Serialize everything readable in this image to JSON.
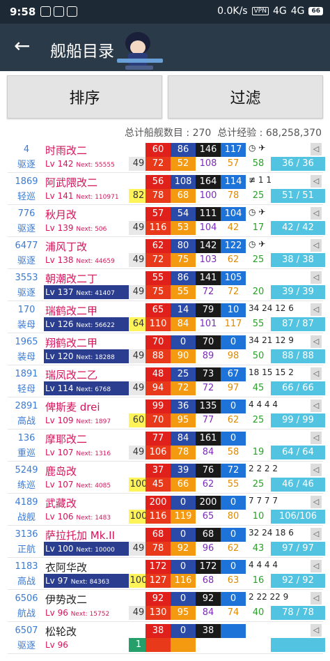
{
  "status": {
    "time": "9:58",
    "speed": "0.0K/s",
    "vpn": "VPN",
    "net1": "4G",
    "net2": "4G",
    "battery": "66"
  },
  "appbar": {
    "title": "舰船目录"
  },
  "buttons": {
    "sort": "排序",
    "filter": "过滤"
  },
  "summary": {
    "ship_count_label": "总计船舰数目 : ",
    "ship_count": "270",
    "exp_label": "总计经验 : ",
    "exp": "68,258,370"
  },
  "ships": [
    {
      "id": "4",
      "type": "驱逐",
      "name": "时雨改二",
      "lv": "Lv 142",
      "next": "Next: 55555",
      "cond": "49",
      "fp": "60",
      "tp": "86",
      "hp": "146",
      "aa": "117",
      "fp2": "72",
      "tp2": "52",
      "hp2": "108",
      "luck": "57",
      "luck2": "58",
      "hpbar": "36 / 36",
      "slots": "◷ ✈"
    },
    {
      "id": "1869",
      "type": "轻巡",
      "name": "阿武隈改二",
      "lv": "Lv 141",
      "next": "Next: 110971",
      "cond": "82",
      "fp": "56",
      "tp": "108",
      "hp": "164",
      "aa": "114",
      "fp2": "78",
      "tp2": "68",
      "hp2": "100",
      "luck": "78",
      "luck2": "25",
      "hpbar": "51 / 51",
      "slots": "≢ 1 1"
    },
    {
      "id": "776",
      "type": "驱逐",
      "name": "秋月改",
      "lv": "Lv 139",
      "next": "Next: 506",
      "cond": "49",
      "fp": "57",
      "tp": "54",
      "hp": "111",
      "aa": "104",
      "fp2": "116",
      "tp2": "53",
      "hp2": "104",
      "luck": "42",
      "luck2": "17",
      "hpbar": "42 / 42",
      "slots": "◷ ✈"
    },
    {
      "id": "6477",
      "type": "驱逐",
      "name": "浦风丁改",
      "lv": "Lv 138",
      "next": "Next: 44659",
      "cond": "49",
      "fp": "62",
      "tp": "80",
      "hp": "142",
      "aa": "122",
      "fp2": "72",
      "tp2": "75",
      "hp2": "103",
      "luck": "62",
      "luck2": "25",
      "hpbar": "38 / 38",
      "slots": "◷ ✈"
    },
    {
      "id": "3553",
      "type": "驱逐",
      "name": "朝潮改二丁",
      "lv": "Lv 137",
      "next": "Next: 41407",
      "cond": "49",
      "fp": "55",
      "tp": "86",
      "hp": "141",
      "aa": "105",
      "fp2": "75",
      "tp2": "55",
      "hp2": "72",
      "luck": "72",
      "luck2": "20",
      "hpbar": "39 / 39",
      "slots": ""
    },
    {
      "id": "170",
      "type": "装母",
      "name": "瑞鹤改二甲",
      "lv": "Lv 126",
      "next": "Next: 56622",
      "cond": "64",
      "fp": "65",
      "tp": "14",
      "hp": "79",
      "aa": "10",
      "fp2": "110",
      "tp2": "84",
      "hp2": "101",
      "luck": "117",
      "luck2": "55",
      "hpbar": "87 / 87",
      "slots": "34 24 12 6"
    },
    {
      "id": "1965",
      "type": "装母",
      "name": "翔鹤改二甲",
      "lv": "Lv 120",
      "next": "Next: 18288",
      "cond": "49",
      "fp": "70",
      "tp": "0",
      "hp": "70",
      "aa": "0",
      "fp2": "88",
      "tp2": "90",
      "hp2": "89",
      "luck": "98",
      "luck2": "50",
      "hpbar": "88 / 88",
      "slots": "34 21 12 9"
    },
    {
      "id": "1891",
      "type": "轻母",
      "name": "瑞凤改二乙",
      "lv": "Lv 114",
      "next": "Next: 6768",
      "cond": "49",
      "fp": "48",
      "tp": "25",
      "hp": "73",
      "aa": "67",
      "fp2": "94",
      "tp2": "72",
      "hp2": "72",
      "luck": "97",
      "luck2": "45",
      "hpbar": "66 / 66",
      "slots": "18 15 15 2"
    },
    {
      "id": "2891",
      "type": "高战",
      "name": "俾斯麦 drei",
      "lv": "Lv 109",
      "next": "Next: 1897",
      "cond": "60",
      "fp": "99",
      "tp": "36",
      "hp": "135",
      "aa": "0",
      "fp2": "70",
      "tp2": "95",
      "hp2": "77",
      "luck": "62",
      "luck2": "25",
      "hpbar": "99 / 99",
      "slots": "4 4 4 4"
    },
    {
      "id": "136",
      "type": "重巡",
      "name": "摩耶改二",
      "lv": "Lv 107",
      "next": "Next: 1316",
      "cond": "49",
      "fp": "77",
      "tp": "84",
      "hp": "161",
      "aa": "0",
      "fp2": "106",
      "tp2": "78",
      "hp2": "84",
      "luck": "58",
      "luck2": "19",
      "hpbar": "64 / 64",
      "slots": ""
    },
    {
      "id": "5249",
      "type": "练巡",
      "name": "鹿岛改",
      "lv": "Lv 107",
      "next": "Next: 4085",
      "cond": "100",
      "fp": "37",
      "tp": "39",
      "hp": "76",
      "aa": "72",
      "fp2": "45",
      "tp2": "66",
      "hp2": "62",
      "luck": "55",
      "luck2": "25",
      "hpbar": "46 / 46",
      "slots": "2 2 2 2"
    },
    {
      "id": "4189",
      "type": "战舰",
      "name": "武藏改",
      "lv": "Lv 106",
      "next": "Next: 1483",
      "cond": "100",
      "fp": "200",
      "tp": "0",
      "hp": "200",
      "aa": "0",
      "fp2": "116",
      "tp2": "119",
      "hp2": "65",
      "luck": "80",
      "luck2": "10",
      "hpbar": "106/106",
      "slots": "7 7 7 7"
    },
    {
      "id": "3136",
      "type": "正航",
      "name": "萨拉托加 Mk.II",
      "lv": "Lv 100",
      "next": "Next: 10000",
      "cond": "49",
      "fp": "68",
      "tp": "0",
      "hp": "68",
      "aa": "0",
      "fp2": "78",
      "tp2": "92",
      "hp2": "96",
      "luck": "62",
      "luck2": "43",
      "hpbar": "97 / 97",
      "slots": "32 24 18 6"
    },
    {
      "id": "1183",
      "type": "高战",
      "name": "衣阿华改",
      "lv": "Lv 97",
      "next": "Next: 84363",
      "cond": "100",
      "fp": "172",
      "tp": "0",
      "hp": "172",
      "aa": "0",
      "fp2": "127",
      "tp2": "116",
      "hp2": "68",
      "luck": "63",
      "luck2": "16",
      "hpbar": "92 / 92",
      "slots": "4 4 4 4"
    },
    {
      "id": "6506",
      "type": "航战",
      "name": "伊势改二",
      "lv": "Lv 96",
      "next": "Next: 15752",
      "cond": "49",
      "fp": "92",
      "tp": "0",
      "hp": "92",
      "aa": "0",
      "fp2": "130",
      "tp2": "95",
      "hp2": "84",
      "luck": "74",
      "luck2": "40",
      "hpbar": "78 / 78",
      "slots": "2 22 22 9"
    },
    {
      "id": "6507",
      "type": "驱逐",
      "name": "松轮改",
      "lv": "Lv 96",
      "next": "",
      "cond": "1",
      "fp": "38",
      "tp": "0",
      "hp": "38",
      "aa": "",
      "fp2": "",
      "tp2": "",
      "hp2": "",
      "luck": "",
      "luck2": "",
      "hpbar": "",
      "slots": ""
    }
  ]
}
